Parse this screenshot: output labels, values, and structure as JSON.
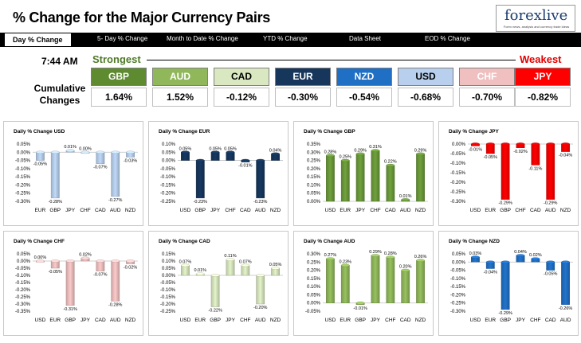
{
  "header": {
    "title": "% Change for the Major Currency Pairs",
    "logo": "forexlive",
    "logo_tagline": "Forex news, analysis and currency trade ideas"
  },
  "nav": {
    "items": [
      "Day % Change",
      "5- Day % Change",
      "Month to Date % Change",
      "YTD % Change",
      "Data Sheet",
      "EOD % Change"
    ]
  },
  "summary": {
    "time": "7:44 AM",
    "strongest_label": "Strongest",
    "weakest_label": "Weakest",
    "cumulative_label": "Cumulative Changes",
    "currencies": [
      {
        "code": "GBP",
        "change": "1.64%",
        "color": "#5e8a30",
        "text_color": "#ffffff"
      },
      {
        "code": "AUD",
        "change": "1.52%",
        "color": "#90b85a",
        "text_color": "#ffffff"
      },
      {
        "code": "CAD",
        "change": "-0.12%",
        "color": "#d9e8c0",
        "text_color": "#000000"
      },
      {
        "code": "EUR",
        "change": "-0.30%",
        "color": "#16365c",
        "text_color": "#ffffff"
      },
      {
        "code": "NZD",
        "change": "-0.54%",
        "color": "#1f6fc5",
        "text_color": "#ffffff"
      },
      {
        "code": "USD",
        "change": "-0.68%",
        "color": "#b8d0ee",
        "text_color": "#000000"
      },
      {
        "code": "CHF",
        "change": "-0.70%",
        "color": "#f0c0c0",
        "text_color": "#ffffff"
      },
      {
        "code": "JPY",
        "change": "-0.82%",
        "color": "#ff0000",
        "text_color": "#ffffff"
      }
    ]
  },
  "chart_data": [
    {
      "type": "bar",
      "title": "Daily % Change USD",
      "bar_color": "#b8d0ee",
      "categories": [
        "EUR",
        "GBP",
        "JPY",
        "CHF",
        "CAD",
        "AUD",
        "NZD"
      ],
      "values": [
        -0.05,
        -0.28,
        0.01,
        0.0,
        -0.07,
        -0.27,
        -0.03
      ],
      "labels": [
        "-0.05%",
        "-0.28%",
        "0.01%",
        "0.00%",
        "-0.07%",
        "-0.27%",
        "-0.03%"
      ],
      "ylim": [
        -0.3,
        0.05
      ],
      "ticks": [
        "0.05%",
        "0.00%",
        "-0.05%",
        "-0.10%",
        "-0.15%",
        "-0.20%",
        "-0.25%",
        "-0.30%"
      ]
    },
    {
      "type": "bar",
      "title": "Daily % Change EUR",
      "bar_color": "#16365c",
      "categories": [
        "USD",
        "GBP",
        "JPY",
        "CHF",
        "CAD",
        "AUD",
        "NZD"
      ],
      "values": [
        0.05,
        -0.23,
        0.05,
        0.05,
        -0.01,
        -0.23,
        0.04
      ],
      "labels": [
        "0.05%",
        "-0.23%",
        "0.05%",
        "0.05%",
        "-0.01%",
        "-0.23%",
        "0.04%"
      ],
      "ylim": [
        -0.25,
        0.1
      ],
      "ticks": [
        "0.10%",
        "0.05%",
        "0.00%",
        "-0.05%",
        "-0.10%",
        "-0.15%",
        "-0.20%",
        "-0.25%"
      ]
    },
    {
      "type": "bar",
      "title": "Daily % Change GBP",
      "bar_color": "#6b9a3a",
      "categories": [
        "USD",
        "EUR",
        "JPY",
        "CHF",
        "CAD",
        "AUD",
        "NZD"
      ],
      "values": [
        0.28,
        0.25,
        0.29,
        0.31,
        0.22,
        0.01,
        0.29
      ],
      "labels": [
        "0.28%",
        "0.25%",
        "0.29%",
        "0.31%",
        "0.22%",
        "0.01%",
        "0.29%"
      ],
      "ylim": [
        0.0,
        0.35
      ],
      "ticks": [
        "0.35%",
        "0.30%",
        "0.25%",
        "0.20%",
        "0.15%",
        "0.10%",
        "0.05%",
        "0.00%"
      ]
    },
    {
      "type": "bar",
      "title": "Daily % Change JPY",
      "bar_color": "#ff0000",
      "categories": [
        "USD",
        "EUR",
        "GBP",
        "CHF",
        "CAD",
        "AUD",
        "NZD"
      ],
      "values": [
        -0.01,
        -0.05,
        -0.29,
        -0.02,
        -0.11,
        -0.29,
        -0.04
      ],
      "labels": [
        "-0.01%",
        "-0.05%",
        "-0.29%",
        "-0.02%",
        "-0.11%",
        "-0.29%",
        "-0.04%"
      ],
      "ylim": [
        -0.3,
        0.0
      ],
      "ticks": [
        "0.00%",
        "-0.05%",
        "-0.10%",
        "-0.15%",
        "-0.20%",
        "-0.25%",
        "-0.30%"
      ]
    },
    {
      "type": "bar",
      "title": "Daily % Change CHF",
      "bar_color": "#f0c0c0",
      "categories": [
        "USD",
        "EUR",
        "GBP",
        "JPY",
        "CAD",
        "AUD",
        "NZD"
      ],
      "values": [
        0.0,
        -0.05,
        -0.31,
        0.02,
        -0.07,
        -0.28,
        -0.02
      ],
      "labels": [
        "0.00%",
        "-0.05%",
        "-0.31%",
        "0.02%",
        "-0.07%",
        "-0.28%",
        "-0.02%"
      ],
      "ylim": [
        -0.35,
        0.05
      ],
      "ticks": [
        "0.05%",
        "0.00%",
        "-0.05%",
        "-0.10%",
        "-0.15%",
        "-0.20%",
        "-0.25%",
        "-0.30%",
        "-0.35%"
      ]
    },
    {
      "type": "bar",
      "title": "Daily % Change CAD",
      "bar_color": "#d9e8c0",
      "categories": [
        "USD",
        "EUR",
        "GBP",
        "JPY",
        "CHF",
        "AUD",
        "NZD"
      ],
      "values": [
        0.07,
        0.01,
        -0.22,
        0.11,
        0.07,
        -0.2,
        0.05
      ],
      "labels": [
        "0.07%",
        "0.01%",
        "-0.22%",
        "0.11%",
        "0.07%",
        "-0.20%",
        "0.05%"
      ],
      "ylim": [
        -0.25,
        0.15
      ],
      "ticks": [
        "0.15%",
        "0.10%",
        "0.05%",
        "0.00%",
        "-0.05%",
        "-0.10%",
        "-0.15%",
        "-0.20%",
        "-0.25%"
      ]
    },
    {
      "type": "bar",
      "title": "Daily % Change AUD",
      "bar_color": "#90b85a",
      "categories": [
        "USD",
        "EUR",
        "GBP",
        "JPY",
        "CHF",
        "CAD",
        "NZD"
      ],
      "values": [
        0.27,
        0.23,
        -0.01,
        0.29,
        0.28,
        0.2,
        0.26
      ],
      "labels": [
        "0.27%",
        "0.23%",
        "-0.01%",
        "0.29%",
        "0.28%",
        "0.20%",
        "0.26%"
      ],
      "ylim": [
        -0.05,
        0.3
      ],
      "ticks": [
        "0.30%",
        "0.25%",
        "0.20%",
        "0.15%",
        "0.10%",
        "0.05%",
        "0.00%",
        "-0.05%"
      ]
    },
    {
      "type": "bar",
      "title": "Daily % Change NZD",
      "bar_color": "#1f6fc5",
      "categories": [
        "USD",
        "EUR",
        "GBP",
        "JPY",
        "CHF",
        "CAD",
        "AUD"
      ],
      "values": [
        0.03,
        -0.04,
        -0.29,
        0.04,
        0.02,
        -0.05,
        -0.26
      ],
      "labels": [
        "0.03%",
        "-0.04%",
        "-0.29%",
        "0.04%",
        "0.02%",
        "-0.05%",
        "-0.26%"
      ],
      "ylim": [
        -0.3,
        0.05
      ],
      "ticks": [
        "0.05%",
        "0.00%",
        "-0.05%",
        "-0.10%",
        "-0.15%",
        "-0.20%",
        "-0.25%",
        "-0.30%"
      ]
    }
  ]
}
